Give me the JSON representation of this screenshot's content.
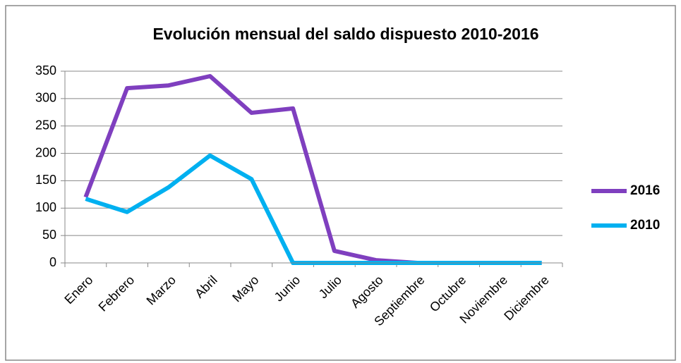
{
  "chart_data": {
    "type": "line",
    "title": "Evolución mensual del saldo dispuesto 2010-2016",
    "categories": [
      "Enero",
      "Febrero",
      "Marzo",
      "Abril",
      "Mayo",
      "Junio",
      "Julio",
      "Agosto",
      "Septiembre",
      "Octubre",
      "Noviembre",
      "Diciembre"
    ],
    "series": [
      {
        "name": "2016",
        "color": "#7f3fbf",
        "values": [
          120,
          319,
          324,
          341,
          274,
          282,
          22,
          5,
          0,
          0,
          0,
          0
        ]
      },
      {
        "name": "2010",
        "color": "#00b0f0",
        "values": [
          117,
          93,
          138,
          196,
          153,
          0,
          0,
          0,
          0,
          0,
          0,
          0
        ]
      }
    ],
    "ylim": [
      0,
      350
    ],
    "yticks": [
      0,
      50,
      100,
      150,
      200,
      250,
      300,
      350
    ],
    "grid": true,
    "legend": "right"
  }
}
